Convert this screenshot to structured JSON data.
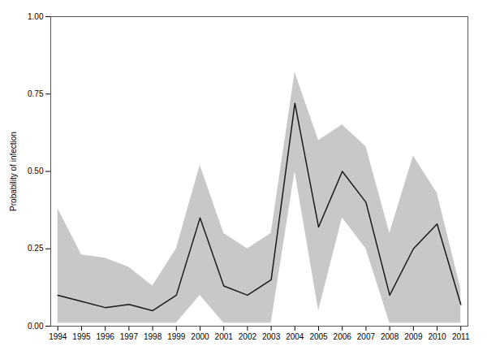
{
  "chart_data": {
    "type": "line",
    "x": [
      1994,
      1995,
      1996,
      1997,
      1998,
      1999,
      2000,
      2001,
      2002,
      2003,
      2004,
      2005,
      2006,
      2007,
      2008,
      2009,
      2010,
      2011
    ],
    "series": [
      {
        "type": "area",
        "color": "#c8c8c8",
        "lower": [
          0.01,
          0.01,
          0.01,
          0.01,
          0.01,
          0.01,
          0.1,
          0.01,
          0.01,
          0.01,
          0.5,
          0.05,
          0.35,
          0.25,
          0.01,
          0.01,
          0.01,
          0.01
        ],
        "upper": [
          0.38,
          0.23,
          0.22,
          0.19,
          0.13,
          0.25,
          0.52,
          0.3,
          0.25,
          0.3,
          0.82,
          0.6,
          0.65,
          0.58,
          0.3,
          0.55,
          0.43,
          0.12
        ]
      },
      {
        "type": "line",
        "color": "#1a1a1a",
        "values": [
          0.1,
          0.08,
          0.06,
          0.07,
          0.05,
          0.1,
          0.35,
          0.13,
          0.1,
          0.15,
          0.72,
          0.32,
          0.5,
          0.4,
          0.1,
          0.25,
          0.33,
          0.07
        ]
      }
    ],
    "ylabel": "Probability of infection",
    "xlim": [
      1993.7,
      2011.3
    ],
    "xticks": [
      1994,
      1995,
      1996,
      1997,
      1998,
      1999,
      2000,
      2001,
      2002,
      2003,
      2004,
      2005,
      2006,
      2007,
      2008,
      2009,
      2010,
      2011
    ],
    "ylim": [
      0.0,
      1.0
    ],
    "yticks": [
      {
        "value": 0.0,
        "label": "0.00"
      },
      0.25,
      {
        "value": 0.5,
        "label": "0.50"
      },
      0.75,
      {
        "value": 1.0,
        "label": "1.00"
      }
    ],
    "grid": false
  }
}
